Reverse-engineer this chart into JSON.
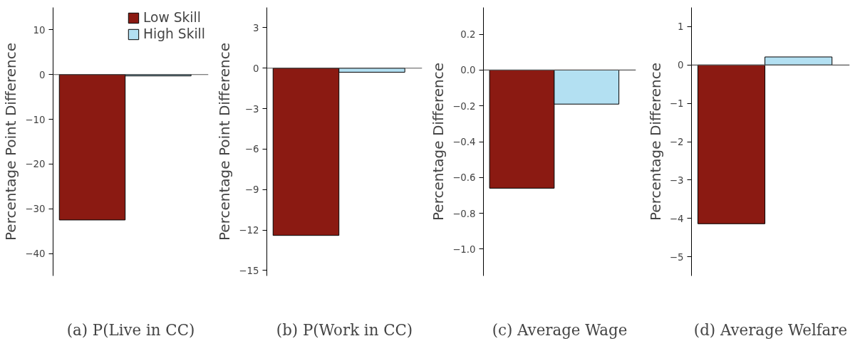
{
  "chart_data": [
    {
      "type": "bar",
      "title": "(a) P(Live in CC)",
      "ylabel": "Percentage Point Difference",
      "categories": [
        null
      ],
      "ylim": [
        -45,
        15
      ],
      "yticks": [
        -40,
        -30,
        -20,
        -10,
        0,
        10
      ],
      "legend": "top right",
      "tick_labels": "y",
      "ref_lines": [
        {
          "axis": "y",
          "value": 0,
          "color": "#555555"
        }
      ],
      "series": [
        {
          "name": "Low Skill",
          "color": "#8b1a12",
          "values": [
            -32.5
          ]
        },
        {
          "name": "High Skill",
          "color": "#b3e0f2",
          "values": [
            -0.3
          ]
        }
      ]
    },
    {
      "type": "bar",
      "title": "(b) P(Work in CC)",
      "ylabel": "Percentage Point Difference",
      "categories": [
        null
      ],
      "ylim": [
        -15.4,
        4.5
      ],
      "yticks": [
        -15,
        -12,
        -9,
        -6,
        -3,
        0,
        3
      ],
      "tick_labels": "y",
      "ref_lines": [
        {
          "axis": "y",
          "value": 0,
          "color": "#555555"
        }
      ],
      "series": [
        {
          "color": "#8b1a12",
          "values": [
            -12.4
          ]
        },
        {
          "color": "#b3e0f2",
          "values": [
            -0.3
          ]
        }
      ]
    },
    {
      "type": "bar",
      "title": "(c) Average Wage",
      "ylabel": "Percentage Difference",
      "categories": [
        null
      ],
      "ylim": [
        -1.15,
        0.35
      ],
      "yticks": [
        {
          "value": -1.0,
          "label": "−1.0"
        },
        {
          "value": -0.8,
          "label": "−0.8"
        },
        {
          "value": -0.6,
          "label": "−0.6"
        },
        {
          "value": -0.4,
          "label": "−0.4"
        },
        {
          "value": -0.2,
          "label": "−0.2"
        },
        {
          "value": 0,
          "label": "0.0"
        },
        {
          "value": 0.2,
          "label": "0.2"
        }
      ],
      "tick_labels": "y",
      "ref_lines": [
        {
          "axis": "y",
          "value": 0,
          "color": "#555555"
        }
      ],
      "series": [
        {
          "color": "#8b1a12",
          "values": [
            -0.66
          ]
        },
        {
          "color": "#b3e0f2",
          "values": [
            -0.19
          ]
        }
      ]
    },
    {
      "type": "bar",
      "title": "(d) Average Welfare",
      "ylabel": "Percentage Difference",
      "categories": [
        null
      ],
      "ylim": [
        -5.5,
        1.5
      ],
      "yticks": [
        -5,
        -4,
        -3,
        -2,
        -1,
        0,
        1
      ],
      "tick_labels": "y",
      "ref_lines": [
        {
          "axis": "y",
          "value": 0,
          "color": "#555555"
        }
      ],
      "series": [
        {
          "color": "#8b1a12",
          "values": [
            -4.14
          ]
        },
        {
          "color": "#b3e0f2",
          "values": [
            0.21
          ]
        }
      ]
    }
  ]
}
